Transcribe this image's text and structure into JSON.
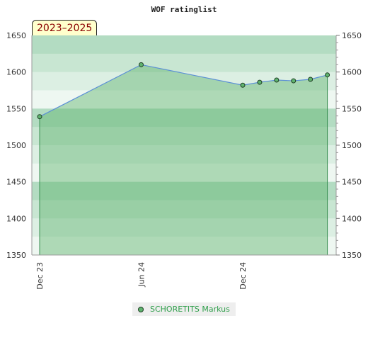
{
  "chart_data": {
    "type": "area",
    "title": "WOF ratinglist",
    "period_label": "2023–2025",
    "x_ticks": [
      "Dec 23",
      "Jun 24",
      "Dec 24"
    ],
    "xlim": [
      "2023-12",
      "2025-04"
    ],
    "ylim": [
      1350,
      1650
    ],
    "y_ticks": [
      1350,
      1400,
      1450,
      1500,
      1550,
      1600,
      1650
    ],
    "grid": true,
    "legend_position": "bottom-center",
    "series": [
      {
        "name": "SCHORETITS Markus",
        "color": "#5fb36f",
        "points": [
          {
            "x": "2023-12",
            "y": 1539
          },
          {
            "x": "2024-06",
            "y": 1610
          },
          {
            "x": "2024-12",
            "y": 1582
          },
          {
            "x": "2025-01",
            "y": 1586
          },
          {
            "x": "2025-02",
            "y": 1589
          },
          {
            "x": "2025-03",
            "y": 1588
          },
          {
            "x": "2025-04",
            "y": 1590
          },
          {
            "x": "2025-05",
            "y": 1596
          }
        ]
      }
    ]
  }
}
